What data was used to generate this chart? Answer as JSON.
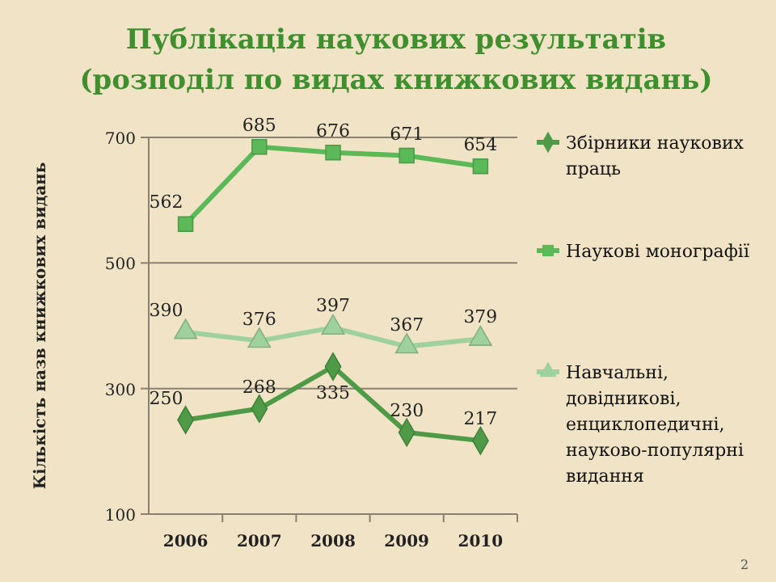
{
  "chart_data": {
    "type": "line",
    "title": "Публікація наукових результатів",
    "subtitle": "(розподіл по видах книжкових видань)",
    "ylabel": "Кількість назв книжкових видань",
    "categories": [
      "2006",
      "2007",
      "2008",
      "2009",
      "2010"
    ],
    "series": [
      {
        "name": "Збірники наукових праць",
        "color": "#4f9a47",
        "marker": "diamond",
        "values": [
          250,
          268,
          335,
          230,
          217
        ]
      },
      {
        "name": "Наукові монографії",
        "color": "#5cb957",
        "marker": "square",
        "values": [
          562,
          685,
          676,
          671,
          654
        ]
      },
      {
        "name": "Навчальні, довідникові, енциклопедичні, науково-популярні видання",
        "color": "#9fd19c",
        "marker": "triangle",
        "values": [
          390,
          376,
          397,
          367,
          379
        ]
      }
    ],
    "ylim": [
      100,
      700
    ],
    "yticks": [
      100,
      300,
      500,
      700
    ],
    "grid": "y",
    "legend": "right",
    "data_labels": true,
    "line_style": "solid",
    "annotations": [
      "2"
    ]
  }
}
